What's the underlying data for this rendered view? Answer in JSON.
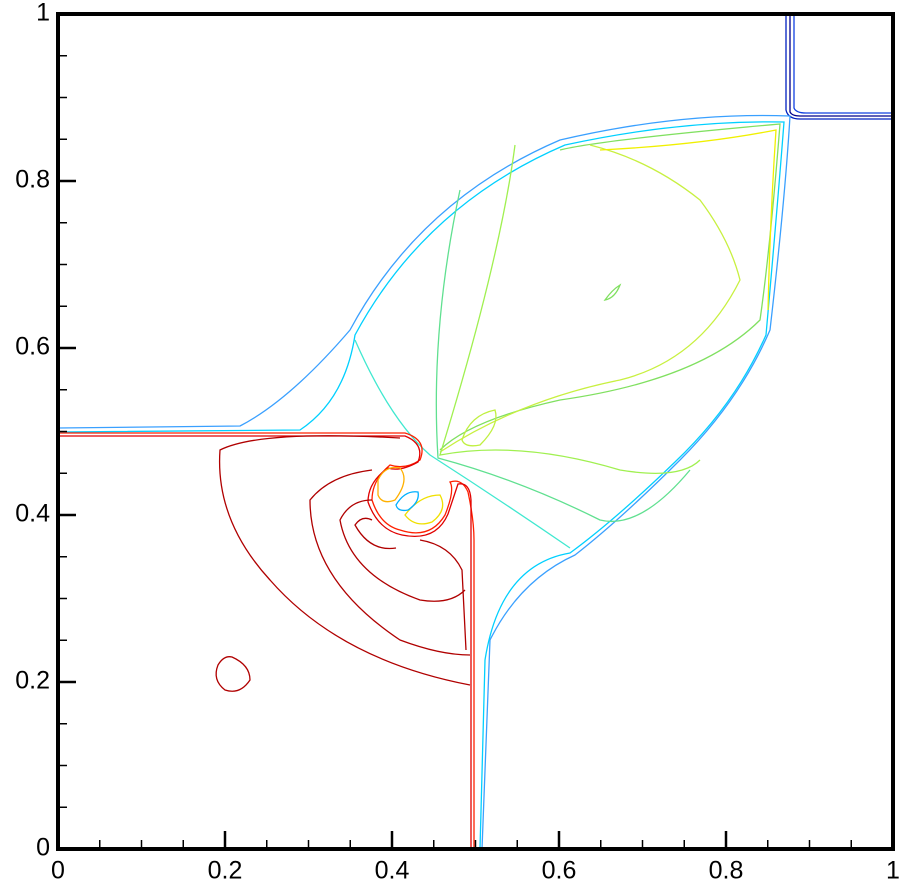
{
  "chart_data": {
    "type": "contour",
    "xlim": [
      0,
      1
    ],
    "ylim": [
      0,
      1
    ],
    "xticks": [
      0,
      0.2,
      0.4,
      0.6,
      0.8,
      1
    ],
    "yticks": [
      0,
      0.2,
      0.4,
      0.6,
      0.8,
      1
    ]
  }
}
